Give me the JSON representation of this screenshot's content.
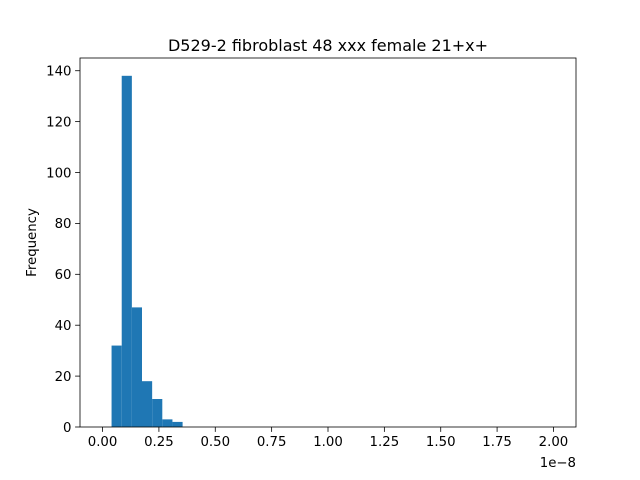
{
  "chart_data": {
    "type": "histogram",
    "title": "D529-2 fibroblast 48 xxx female 21+x+",
    "xlabel": "",
    "ylabel": "Frequency",
    "x_offset_text": "1e−8",
    "xlim": [
      -0.1,
      2.1
    ],
    "ylim": [
      0,
      145
    ],
    "x_ticks": [
      0.0,
      0.25,
      0.5,
      0.75,
      1.0,
      1.25,
      1.5,
      1.75,
      2.0
    ],
    "x_tick_labels": [
      "0.00",
      "0.25",
      "0.50",
      "0.75",
      "1.00",
      "1.25",
      "1.50",
      "1.75",
      "2.00"
    ],
    "y_ticks": [
      0,
      20,
      40,
      60,
      80,
      100,
      120,
      140
    ],
    "y_tick_labels": [
      "0",
      "20",
      "40",
      "60",
      "80",
      "100",
      "120",
      "140"
    ],
    "bins": [
      {
        "x0": 0.04,
        "x1": 0.085,
        "count": 32
      },
      {
        "x0": 0.085,
        "x1": 0.13,
        "count": 138
      },
      {
        "x0": 0.13,
        "x1": 0.175,
        "count": 47
      },
      {
        "x0": 0.175,
        "x1": 0.22,
        "count": 18
      },
      {
        "x0": 0.22,
        "x1": 0.265,
        "count": 11
      },
      {
        "x0": 0.265,
        "x1": 0.31,
        "count": 3
      },
      {
        "x0": 0.31,
        "x1": 0.355,
        "count": 2
      }
    ],
    "bar_color": "#1f77b4",
    "grid": false,
    "legend": "none"
  }
}
